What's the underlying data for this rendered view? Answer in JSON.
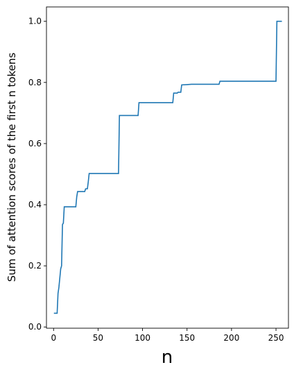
{
  "chart_data": {
    "type": "line",
    "title": "",
    "xlabel": "n",
    "ylabel": "Sum of attention scores of the first n tokens",
    "xlim": [
      -8,
      264
    ],
    "ylim": [
      -0.004,
      1.047
    ],
    "xticks": [
      0,
      50,
      100,
      150,
      200,
      250
    ],
    "xtick_labels": [
      "0",
      "50",
      "100",
      "150",
      "200",
      "250"
    ],
    "yticks": [
      0.0,
      0.2,
      0.4,
      0.6,
      0.8,
      1.0
    ],
    "ytick_labels": [
      "0.0",
      "0.2",
      "0.4",
      "0.6",
      "0.8",
      "1.0"
    ],
    "grid": false,
    "series": [
      {
        "color": "#1f77b4",
        "x": [
          1,
          4,
          5,
          6,
          7,
          8,
          9,
          10,
          11,
          12,
          25,
          26,
          27,
          28,
          35,
          36,
          38,
          39,
          40,
          73,
          74,
          95,
          96,
          134,
          135,
          139,
          140,
          143,
          144,
          150,
          155,
          186,
          187,
          250,
          251,
          256
        ],
        "y": [
          0.045,
          0.045,
          0.11,
          0.13,
          0.16,
          0.19,
          0.2,
          0.335,
          0.34,
          0.393,
          0.393,
          0.425,
          0.443,
          0.443,
          0.443,
          0.452,
          0.452,
          0.475,
          0.502,
          0.502,
          0.692,
          0.692,
          0.734,
          0.734,
          0.765,
          0.765,
          0.768,
          0.768,
          0.792,
          0.793,
          0.794,
          0.794,
          0.804,
          0.804,
          1.0,
          1.0
        ]
      }
    ]
  }
}
